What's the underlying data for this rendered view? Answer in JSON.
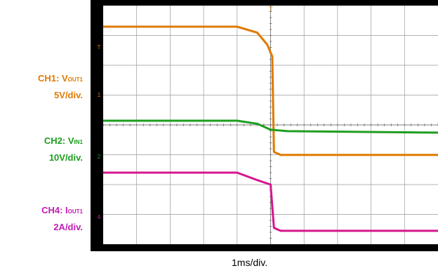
{
  "chart_data": {
    "type": "line",
    "grid": true,
    "divisions": {
      "x": 10,
      "y": 8
    },
    "xlabel": "1ms/div.",
    "time_unit": "ms",
    "channels": [
      {
        "id": "CH1",
        "label_prefix": "CH1: V",
        "label_sub": "OUT1",
        "scale": "5V/div.",
        "color": "#E07A00",
        "points": [
          [
            0,
            0
          ],
          [
            4.0,
            0
          ],
          [
            4.6,
            0.2
          ],
          [
            4.9,
            0.6
          ],
          [
            5.05,
            1.0
          ],
          [
            5.1,
            4.2
          ],
          [
            5.3,
            4.3
          ],
          [
            10,
            4.3
          ]
        ]
      },
      {
        "id": "CH2",
        "label_prefix": "CH2: V",
        "label_sub": "IN1",
        "scale": "10V/div.",
        "color": "#1E9E1E",
        "points": [
          [
            0,
            0
          ],
          [
            4.0,
            0
          ],
          [
            4.6,
            0.1
          ],
          [
            5.0,
            0.3
          ],
          [
            5.5,
            0.35
          ],
          [
            10,
            0.4
          ]
        ]
      },
      {
        "id": "CH4",
        "label_prefix": "CH4: I",
        "label_sub": "OUT1",
        "scale": "2A/div.",
        "color": "#D6168E",
        "points": [
          [
            0,
            0
          ],
          [
            4.0,
            0
          ],
          [
            4.6,
            0.25
          ],
          [
            5.0,
            0.4
          ],
          [
            5.1,
            1.85
          ],
          [
            5.3,
            1.95
          ],
          [
            10,
            1.95
          ]
        ]
      }
    ]
  },
  "markers": {
    "ch1": "1",
    "ch2": "2",
    "ch4": "4",
    "trigger_level": "T",
    "trigger_position": "T"
  }
}
